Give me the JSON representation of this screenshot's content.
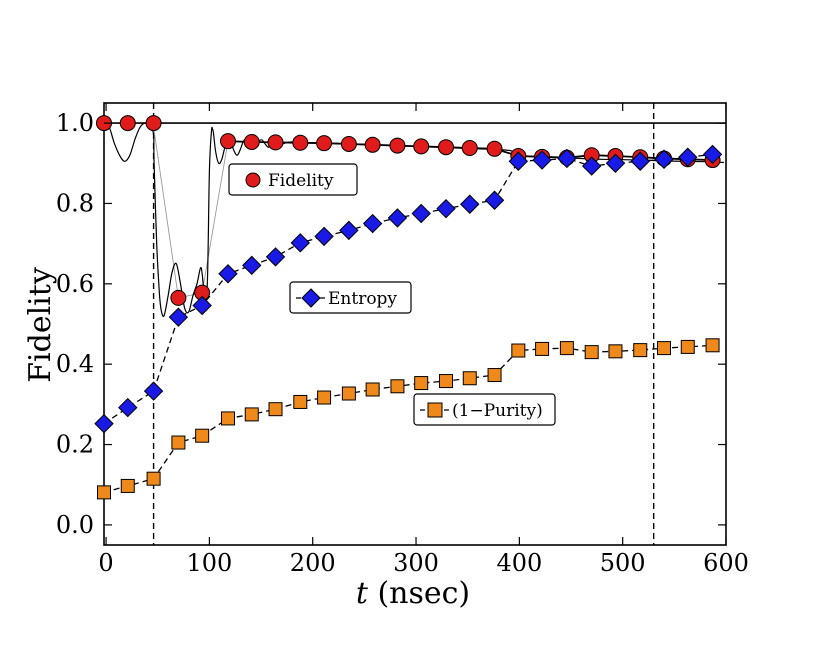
{
  "chart_data": {
    "type": "line",
    "ylabel": "Fidelity",
    "xlabel_var": "t",
    "xlabel_unit": " (nsec)",
    "xlim": [
      -2,
      600
    ],
    "ylim": [
      -0.05,
      1.05
    ],
    "xticks": [
      0,
      100,
      200,
      300,
      400,
      500,
      600
    ],
    "yticks": [
      0.0,
      0.2,
      0.4,
      0.6,
      0.8,
      1.0
    ],
    "ytick_labels": [
      "0.0",
      "0.2",
      "0.4",
      "0.6",
      "0.8",
      "1.0"
    ],
    "vlines": [
      46,
      530
    ],
    "reference_line": 1.0,
    "grid": false,
    "series": [
      {
        "name": "Fidelity",
        "marker": "circle",
        "color": "#e01b1b",
        "line": "none",
        "x": [
          -2,
          21,
          46,
          70,
          93,
          118,
          141,
          164,
          188,
          211,
          235,
          258,
          282,
          305,
          329,
          352,
          376,
          399,
          422,
          446,
          470,
          493,
          517,
          540,
          563,
          587
        ],
        "y": [
          1.0,
          1.0,
          1.0,
          0.565,
          0.578,
          0.955,
          0.953,
          0.952,
          0.951,
          0.95,
          0.948,
          0.946,
          0.944,
          0.942,
          0.94,
          0.938,
          0.936,
          0.918,
          0.916,
          0.914,
          0.92,
          0.918,
          0.915,
          0.912,
          0.91,
          0.908
        ]
      },
      {
        "name": "Entropy",
        "marker": "diamond",
        "color": "#1a1ae6",
        "line": "dashed",
        "x": [
          -2,
          21,
          46,
          70,
          93,
          118,
          141,
          164,
          188,
          211,
          235,
          258,
          282,
          305,
          329,
          352,
          376,
          399,
          422,
          446,
          470,
          493,
          517,
          540,
          563,
          587
        ],
        "y": [
          0.252,
          0.292,
          0.333,
          0.517,
          0.546,
          0.625,
          0.646,
          0.667,
          0.702,
          0.718,
          0.733,
          0.75,
          0.764,
          0.775,
          0.787,
          0.798,
          0.808,
          0.905,
          0.908,
          0.912,
          0.893,
          0.9,
          0.905,
          0.91,
          0.915,
          0.922
        ]
      },
      {
        "name": "(1−Purity)",
        "marker": "square",
        "color": "#f0891c",
        "line": "dashed",
        "x": [
          -2,
          21,
          46,
          70,
          93,
          118,
          141,
          164,
          188,
          211,
          235,
          258,
          282,
          305,
          329,
          352,
          376,
          399,
          422,
          446,
          470,
          493,
          517,
          540,
          563,
          587
        ],
        "y": [
          0.081,
          0.097,
          0.115,
          0.205,
          0.222,
          0.265,
          0.275,
          0.288,
          0.306,
          0.317,
          0.327,
          0.337,
          0.345,
          0.353,
          0.358,
          0.365,
          0.373,
          0.434,
          0.438,
          0.44,
          0.43,
          0.432,
          0.435,
          0.44,
          0.443,
          0.447
        ]
      }
    ],
    "oscillating_curve": {
      "color": "#000000",
      "x": [
        -2,
        3,
        8,
        13,
        18,
        23,
        28,
        33,
        38,
        43,
        46,
        46.5,
        49,
        51,
        53,
        56,
        60,
        64,
        68,
        72,
        76,
        80,
        84,
        88,
        92,
        95,
        98,
        100,
        102,
        103,
        104,
        106,
        109,
        112,
        115,
        118,
        121,
        124,
        127,
        130,
        133,
        136,
        139,
        142,
        145,
        148,
        151,
        154,
        157,
        160,
        163,
        166,
        170,
        175,
        180,
        190,
        200,
        220,
        240,
        260,
        280,
        300,
        320,
        340,
        360,
        380,
        390,
        393,
        396,
        400,
        410,
        420,
        440,
        460,
        480,
        500,
        520,
        540,
        560,
        580,
        598
      ],
      "y": [
        1.0,
        0.99,
        0.95,
        0.92,
        0.905,
        0.92,
        0.96,
        0.99,
        1.0,
        0.99,
        0.97,
        0.9,
        0.7,
        0.6,
        0.54,
        0.52,
        0.57,
        0.63,
        0.65,
        0.6,
        0.54,
        0.53,
        0.57,
        0.6,
        0.64,
        0.58,
        0.6,
        0.88,
        0.98,
        0.985,
        0.975,
        0.93,
        0.9,
        0.91,
        0.94,
        0.96,
        0.95,
        0.93,
        0.92,
        0.935,
        0.955,
        0.96,
        0.945,
        0.935,
        0.94,
        0.955,
        0.958,
        0.948,
        0.94,
        0.945,
        0.955,
        0.955,
        0.948,
        0.952,
        0.953,
        0.952,
        0.951,
        0.95,
        0.948,
        0.946,
        0.944,
        0.942,
        0.94,
        0.938,
        0.936,
        0.934,
        0.932,
        0.93,
        0.925,
        0.918,
        0.917,
        0.916,
        0.914,
        0.912,
        0.91,
        0.909,
        0.908,
        0.906,
        0.905,
        0.904,
        0.902
      ]
    },
    "grey_connectors": [
      {
        "x1": 46,
        "y1": 0.99,
        "x2": 70,
        "y2": 0.565
      },
      {
        "x1": 70,
        "y1": 0.565,
        "x2": 93,
        "y2": 0.578
      },
      {
        "x1": 93,
        "y1": 0.578,
        "x2": 118,
        "y2": 0.955
      }
    ],
    "legends": [
      {
        "label": "Fidelity",
        "series": 0
      },
      {
        "label": "Entropy",
        "series": 1
      },
      {
        "label": "(1−Purity)",
        "series": 2
      }
    ]
  }
}
